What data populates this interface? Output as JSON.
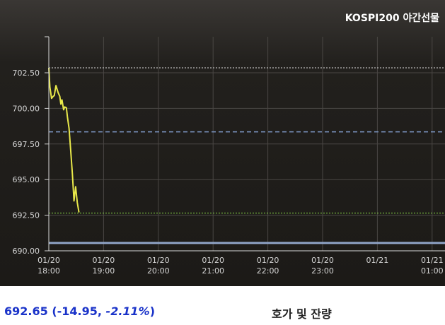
{
  "chart_data": {
    "type": "line",
    "title": "KOSPI200 야간선물",
    "x_ticks": [
      {
        "date": "01/20",
        "time": "18:00"
      },
      {
        "date": "01/20",
        "time": "19:00"
      },
      {
        "date": "01/20",
        "time": "20:00"
      },
      {
        "date": "01/20",
        "time": "21:00"
      },
      {
        "date": "01/20",
        "time": "22:00"
      },
      {
        "date": "01/20",
        "time": "23:00"
      },
      {
        "date": "01/21",
        "time": ""
      },
      {
        "date": "01/21",
        "time": "01:00"
      }
    ],
    "y_ticks": [
      "702.50",
      "700.00",
      "697.50",
      "695.00",
      "692.50",
      "690.00"
    ],
    "ylim": [
      690.0,
      702.5
    ],
    "xlim_hours": [
      18.0,
      25.0
    ],
    "series": [
      {
        "color": "#e8e84a",
        "points": [
          [
            18.0,
            702.85
          ],
          [
            18.02,
            701.5
          ],
          [
            18.05,
            700.7
          ],
          [
            18.08,
            700.85
          ],
          [
            18.1,
            700.9
          ],
          [
            18.13,
            701.6
          ],
          [
            18.17,
            701.1
          ],
          [
            18.2,
            700.85
          ],
          [
            18.22,
            700.3
          ],
          [
            18.24,
            700.6
          ],
          [
            18.27,
            699.9
          ],
          [
            18.29,
            700.1
          ],
          [
            18.32,
            700.05
          ],
          [
            18.34,
            699.4
          ],
          [
            18.37,
            698.6
          ],
          [
            18.4,
            697.0
          ],
          [
            18.43,
            695.4
          ],
          [
            18.46,
            693.5
          ],
          [
            18.49,
            694.5
          ],
          [
            18.52,
            693.4
          ],
          [
            18.55,
            692.7
          ]
        ]
      }
    ],
    "reference_lines": [
      {
        "value": 702.85,
        "style": "dotted",
        "color": "#dddddd"
      },
      {
        "value": 698.35,
        "style": "dashed",
        "color": "#7f9bc9"
      },
      {
        "value": 692.65,
        "style": "dotted",
        "color": "#8ee04a"
      },
      {
        "value": 690.55,
        "style": "solid",
        "color": "#8fa3c6"
      }
    ],
    "colors": {
      "background": "#1f1c19",
      "grid": "#4a4744",
      "axis_text": "#d6d6d6"
    }
  },
  "footer": {
    "price": "692.65",
    "change": "-14.95",
    "percent": "-2.11%",
    "orderbook_title": "호가 및 잔량",
    "quote_color": "#1a33c9"
  }
}
